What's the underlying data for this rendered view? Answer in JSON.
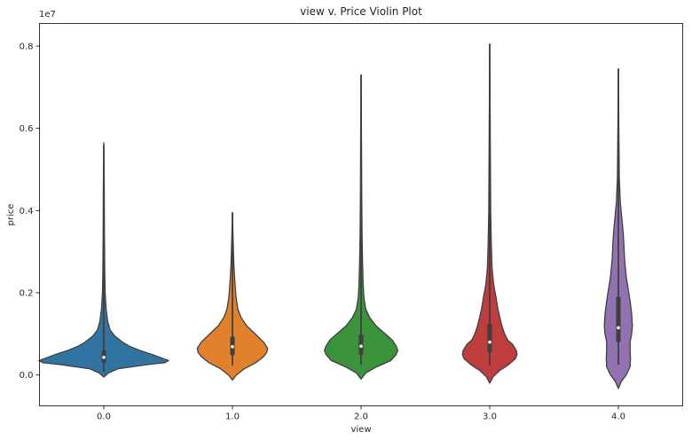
{
  "chart_data": {
    "type": "violin",
    "title": "view v. Price Violin Plot",
    "xlabel": "view",
    "ylabel": "price",
    "y_offset_text": "1e7",
    "ylim": [
      -750000,
      8550000
    ],
    "yticks": [
      0.0,
      0.2,
      0.4,
      0.6,
      0.8
    ],
    "y_tick_labels": [
      "0.0",
      "0.2",
      "0.4",
      "0.6",
      "0.8"
    ],
    "categories": [
      "0.0",
      "1.0",
      "2.0",
      "3.0",
      "4.0"
    ],
    "colors": [
      "#3274a1",
      "#e1812c",
      "#3a923a",
      "#c03d3e",
      "#9372b2"
    ],
    "grid": false,
    "violins": [
      {
        "category": "0.0",
        "min": 75000,
        "q1": 300000,
        "median": 430000,
        "q3": 600000,
        "max": 5600000,
        "kde_lower": -50000,
        "kde_upper": 5650000,
        "density": [
          [
            -50000,
            0.0
          ],
          [
            50000,
            0.06
          ],
          [
            150000,
            0.18
          ],
          [
            250000,
            0.55
          ],
          [
            300000,
            0.78
          ],
          [
            350000,
            0.83
          ],
          [
            400000,
            0.76
          ],
          [
            500000,
            0.62
          ],
          [
            600000,
            0.46
          ],
          [
            700000,
            0.33
          ],
          [
            800000,
            0.24
          ],
          [
            950000,
            0.14
          ],
          [
            1100000,
            0.08
          ],
          [
            1300000,
            0.05
          ],
          [
            1600000,
            0.03
          ],
          [
            2000000,
            0.017
          ],
          [
            2500000,
            0.012
          ],
          [
            3500000,
            0.008
          ],
          [
            4500000,
            0.006
          ],
          [
            5650000,
            0.0
          ]
        ]
      },
      {
        "category": "1.0",
        "min": 230000,
        "q1": 480000,
        "median": 690000,
        "q3": 930000,
        "max": 3950000,
        "kde_lower": -120000,
        "kde_upper": 3950000,
        "density": [
          [
            -120000,
            0.0
          ],
          [
            0,
            0.05
          ],
          [
            150000,
            0.15
          ],
          [
            300000,
            0.3
          ],
          [
            450000,
            0.4
          ],
          [
            550000,
            0.44
          ],
          [
            650000,
            0.45
          ],
          [
            800000,
            0.4
          ],
          [
            1000000,
            0.29
          ],
          [
            1200000,
            0.18
          ],
          [
            1400000,
            0.11
          ],
          [
            1600000,
            0.07
          ],
          [
            1900000,
            0.045
          ],
          [
            2300000,
            0.03
          ],
          [
            2700000,
            0.018
          ],
          [
            3200000,
            0.01
          ],
          [
            3950000,
            0.0
          ]
        ]
      },
      {
        "category": "2.0",
        "min": 250000,
        "q1": 500000,
        "median": 700000,
        "q3": 980000,
        "max": 7300000,
        "kde_lower": -100000,
        "kde_upper": 7300000,
        "density": [
          [
            -100000,
            0.0
          ],
          [
            50000,
            0.06
          ],
          [
            200000,
            0.2
          ],
          [
            350000,
            0.38
          ],
          [
            500000,
            0.45
          ],
          [
            600000,
            0.47
          ],
          [
            700000,
            0.45
          ],
          [
            850000,
            0.4
          ],
          [
            1000000,
            0.31
          ],
          [
            1200000,
            0.19
          ],
          [
            1400000,
            0.11
          ],
          [
            1600000,
            0.06
          ],
          [
            1900000,
            0.035
          ],
          [
            2300000,
            0.025
          ],
          [
            2800000,
            0.018
          ],
          [
            3500000,
            0.012
          ],
          [
            4500000,
            0.008
          ],
          [
            5500000,
            0.006
          ],
          [
            7300000,
            0.0
          ]
        ]
      },
      {
        "category": "3.0",
        "min": 250000,
        "q1": 560000,
        "median": 800000,
        "q3": 1250000,
        "max": 8050000,
        "kde_lower": -200000,
        "kde_upper": 8050000,
        "density": [
          [
            -200000,
            0.0
          ],
          [
            -50000,
            0.04
          ],
          [
            100000,
            0.12
          ],
          [
            250000,
            0.24
          ],
          [
            400000,
            0.33
          ],
          [
            500000,
            0.35
          ],
          [
            600000,
            0.34
          ],
          [
            750000,
            0.29
          ],
          [
            850000,
            0.23
          ],
          [
            1000000,
            0.19
          ],
          [
            1200000,
            0.155
          ],
          [
            1400000,
            0.13
          ],
          [
            1600000,
            0.105
          ],
          [
            1900000,
            0.08
          ],
          [
            2200000,
            0.05
          ],
          [
            2600000,
            0.03
          ],
          [
            3200000,
            0.02
          ],
          [
            4000000,
            0.012
          ],
          [
            5500000,
            0.008
          ],
          [
            8050000,
            0.0
          ]
        ]
      },
      {
        "category": "4.0",
        "min": 250000,
        "q1": 800000,
        "median": 1150000,
        "q3": 1900000,
        "max": 7450000,
        "kde_lower": -330000,
        "kde_upper": 7450000,
        "density": [
          [
            -330000,
            0.0
          ],
          [
            -150000,
            0.04
          ],
          [
            0,
            0.1
          ],
          [
            200000,
            0.15
          ],
          [
            400000,
            0.155
          ],
          [
            600000,
            0.15
          ],
          [
            800000,
            0.15
          ],
          [
            1000000,
            0.17
          ],
          [
            1200000,
            0.18
          ],
          [
            1500000,
            0.17
          ],
          [
            1800000,
            0.15
          ],
          [
            2100000,
            0.125
          ],
          [
            2400000,
            0.1
          ],
          [
            2800000,
            0.08
          ],
          [
            3200000,
            0.07
          ],
          [
            3500000,
            0.06
          ],
          [
            3800000,
            0.045
          ],
          [
            4200000,
            0.025
          ],
          [
            4800000,
            0.012
          ],
          [
            6000000,
            0.006
          ],
          [
            7450000,
            0.0
          ]
        ]
      }
    ]
  }
}
